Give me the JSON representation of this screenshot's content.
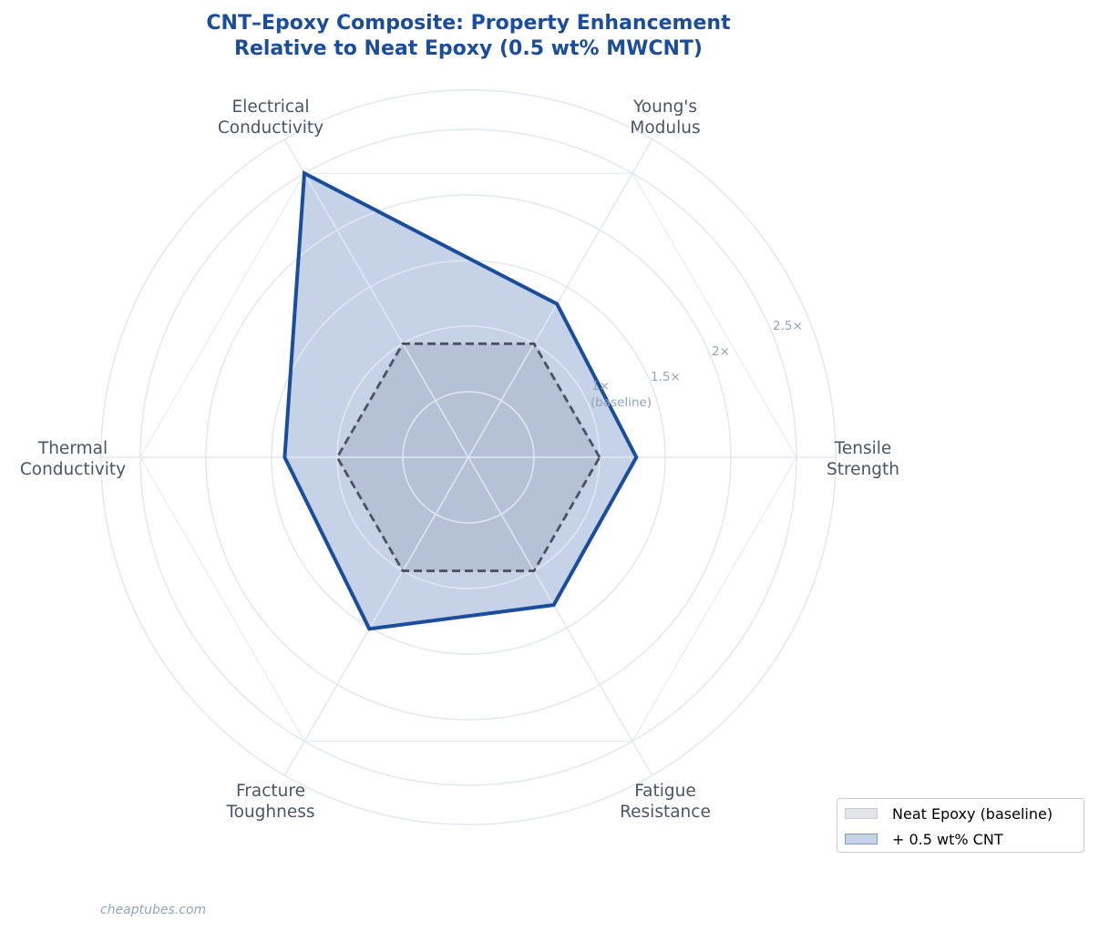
{
  "title": {
    "line1": "CNT–Epoxy Composite: Property Enhancement",
    "line2": "Relative to Neat Epoxy (0.5 wt% MWCNT)"
  },
  "watermark": "cheaptubes.com",
  "legend": {
    "items": [
      {
        "label": "Neat Epoxy (baseline)",
        "fill": "#e2e4e8",
        "edge": "#c9cbd0"
      },
      {
        "label": "+ 0.5 wt% CNT",
        "fill": "#c5d2e8",
        "edge": "#7f9cce"
      }
    ]
  },
  "colors": {
    "title": "#1a4d9c",
    "cnt_line": "#1a4d9c",
    "cnt_fill": "#c5d2e8",
    "baseline_line": "#4a5260",
    "baseline_fill": "#b0bed4",
    "grid": "#e2e8f0",
    "axis_label": "#4a5568",
    "tick_label": "#94a3b8"
  },
  "chart_data": {
    "type": "radar",
    "title": "CNT–Epoxy Composite: Property Enhancement Relative to Neat Epoxy (0.5 wt% MWCNT)",
    "categories": [
      "Tensile Strength",
      "Young's Modulus",
      "Electrical Conductivity",
      "Thermal Conductivity",
      "Fracture Toughness",
      "Fatigue Resistance"
    ],
    "category_label_lines": [
      [
        "Tensile",
        "Strength"
      ],
      [
        "Young's",
        "Modulus"
      ],
      [
        "Electrical",
        "Conductivity"
      ],
      [
        "Thermal",
        "Conductivity"
      ],
      [
        "Fracture",
        "Toughness"
      ],
      [
        "Fatigue",
        "Resistance"
      ]
    ],
    "series": [
      {
        "name": "Neat Epoxy (baseline)",
        "values": [
          1.0,
          1.0,
          1.0,
          1.0,
          1.0,
          1.0
        ],
        "style": "dashed"
      },
      {
        "name": "+ 0.5 wt% CNT",
        "values": [
          1.28,
          1.35,
          2.5,
          1.4,
          1.51,
          1.3
        ],
        "style": "solid"
      }
    ],
    "radial_ticks": [
      1.0,
      1.5,
      2.0,
      2.5
    ],
    "radial_tick_labels": [
      "1×",
      "1.5×",
      "2×",
      "2.5×"
    ],
    "baseline_annotation": "(baseline)",
    "rlim": [
      0,
      2.8
    ],
    "grid": true,
    "legend_position": "lower right"
  }
}
